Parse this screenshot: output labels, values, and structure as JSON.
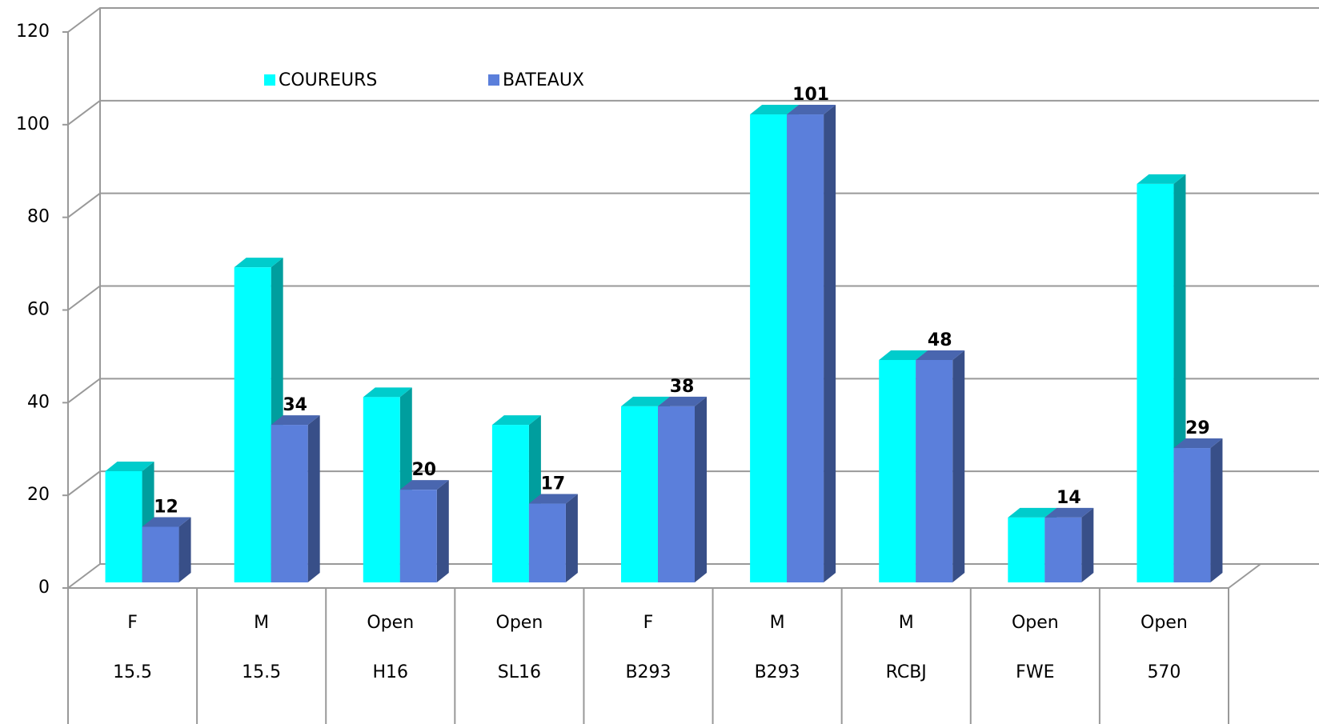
{
  "chart_data": {
    "type": "bar3d",
    "categories": [
      [
        "F",
        "15.5"
      ],
      [
        "M",
        "15.5"
      ],
      [
        "Open",
        "H16"
      ],
      [
        "Open",
        "SL16"
      ],
      [
        "F",
        "B293"
      ],
      [
        "M",
        "B293"
      ],
      [
        "M",
        "RCBJ"
      ],
      [
        "Open",
        "FWE"
      ],
      [
        "Open",
        "570"
      ]
    ],
    "series": [
      {
        "name": "COUREURS",
        "color": "#00ffff",
        "values": [
          24,
          68,
          40,
          34,
          38,
          101,
          48,
          14,
          86
        ],
        "labels": false
      },
      {
        "name": "BATEAUX",
        "color": "#5b7fdb",
        "values": [
          12,
          34,
          20,
          17,
          38,
          101,
          48,
          14,
          29
        ],
        "labels": true
      }
    ],
    "ylim": [
      0,
      120
    ],
    "yticks": [
      0,
      20,
      40,
      60,
      80,
      100,
      120
    ],
    "grid": true,
    "legend": "top"
  }
}
